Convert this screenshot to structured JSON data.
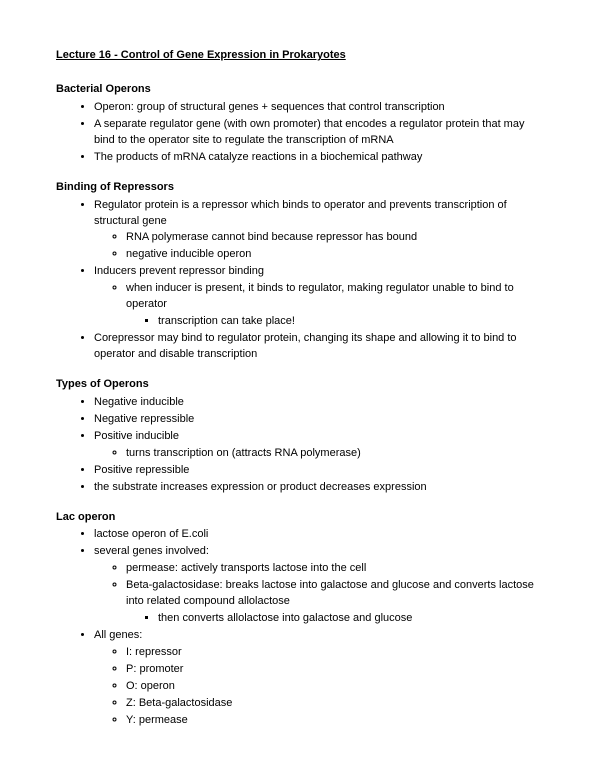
{
  "title": "Lecture 16 - Control of Gene Expression in Prokaryotes",
  "sections": {
    "s1": {
      "heading": "Bacterial Operons",
      "b1": "Operon: group of structural genes + sequences that control transcription",
      "b2": "A separate regulator gene (with own promoter) that encodes a regulator protein that may bind to the operator site to regulate the transcription of mRNA",
      "b3": "The products of mRNA catalyze reactions in a biochemical pathway"
    },
    "s2": {
      "heading": "Binding of Repressors",
      "b1": "Regulator protein is a repressor which binds to operator and prevents transcription of structural gene",
      "b1a": "RNA polymerase cannot bind because repressor has bound",
      "b1b": "negative inducible operon",
      "b2": "Inducers prevent repressor binding",
      "b2a": "when inducer is present, it binds to regulator, making regulator unable to bind to operator",
      "b2a1": "transcription can take place!",
      "b3": "Corepressor may bind to regulator protein, changing its shape and allowing it to bind to operator and disable transcription"
    },
    "s3": {
      "heading": "Types of Operons",
      "b1": "Negative inducible",
      "b2": "Negative repressible",
      "b3": "Positive inducible",
      "b3a": "turns transcription on (attracts RNA polymerase)",
      "b4": "Positive repressible",
      "b5": "the substrate increases expression or product decreases expression"
    },
    "s4": {
      "heading": "Lac operon",
      "b1": "lactose operon of E.coli",
      "b2": "several genes involved:",
      "b2a": "permease: actively transports lactose into the cell",
      "b2b": "Beta-galactosidase: breaks lactose into galactose and glucose and converts lactose into related compound allolactose",
      "b2b1": "then converts allolactose into galactose and glucose",
      "b3": "All genes:",
      "b3a": "I: repressor",
      "b3b": "P: promoter",
      "b3c": "O: operon",
      "b3d": "Z: Beta-galactosidase",
      "b3e": "Y: permease"
    }
  }
}
